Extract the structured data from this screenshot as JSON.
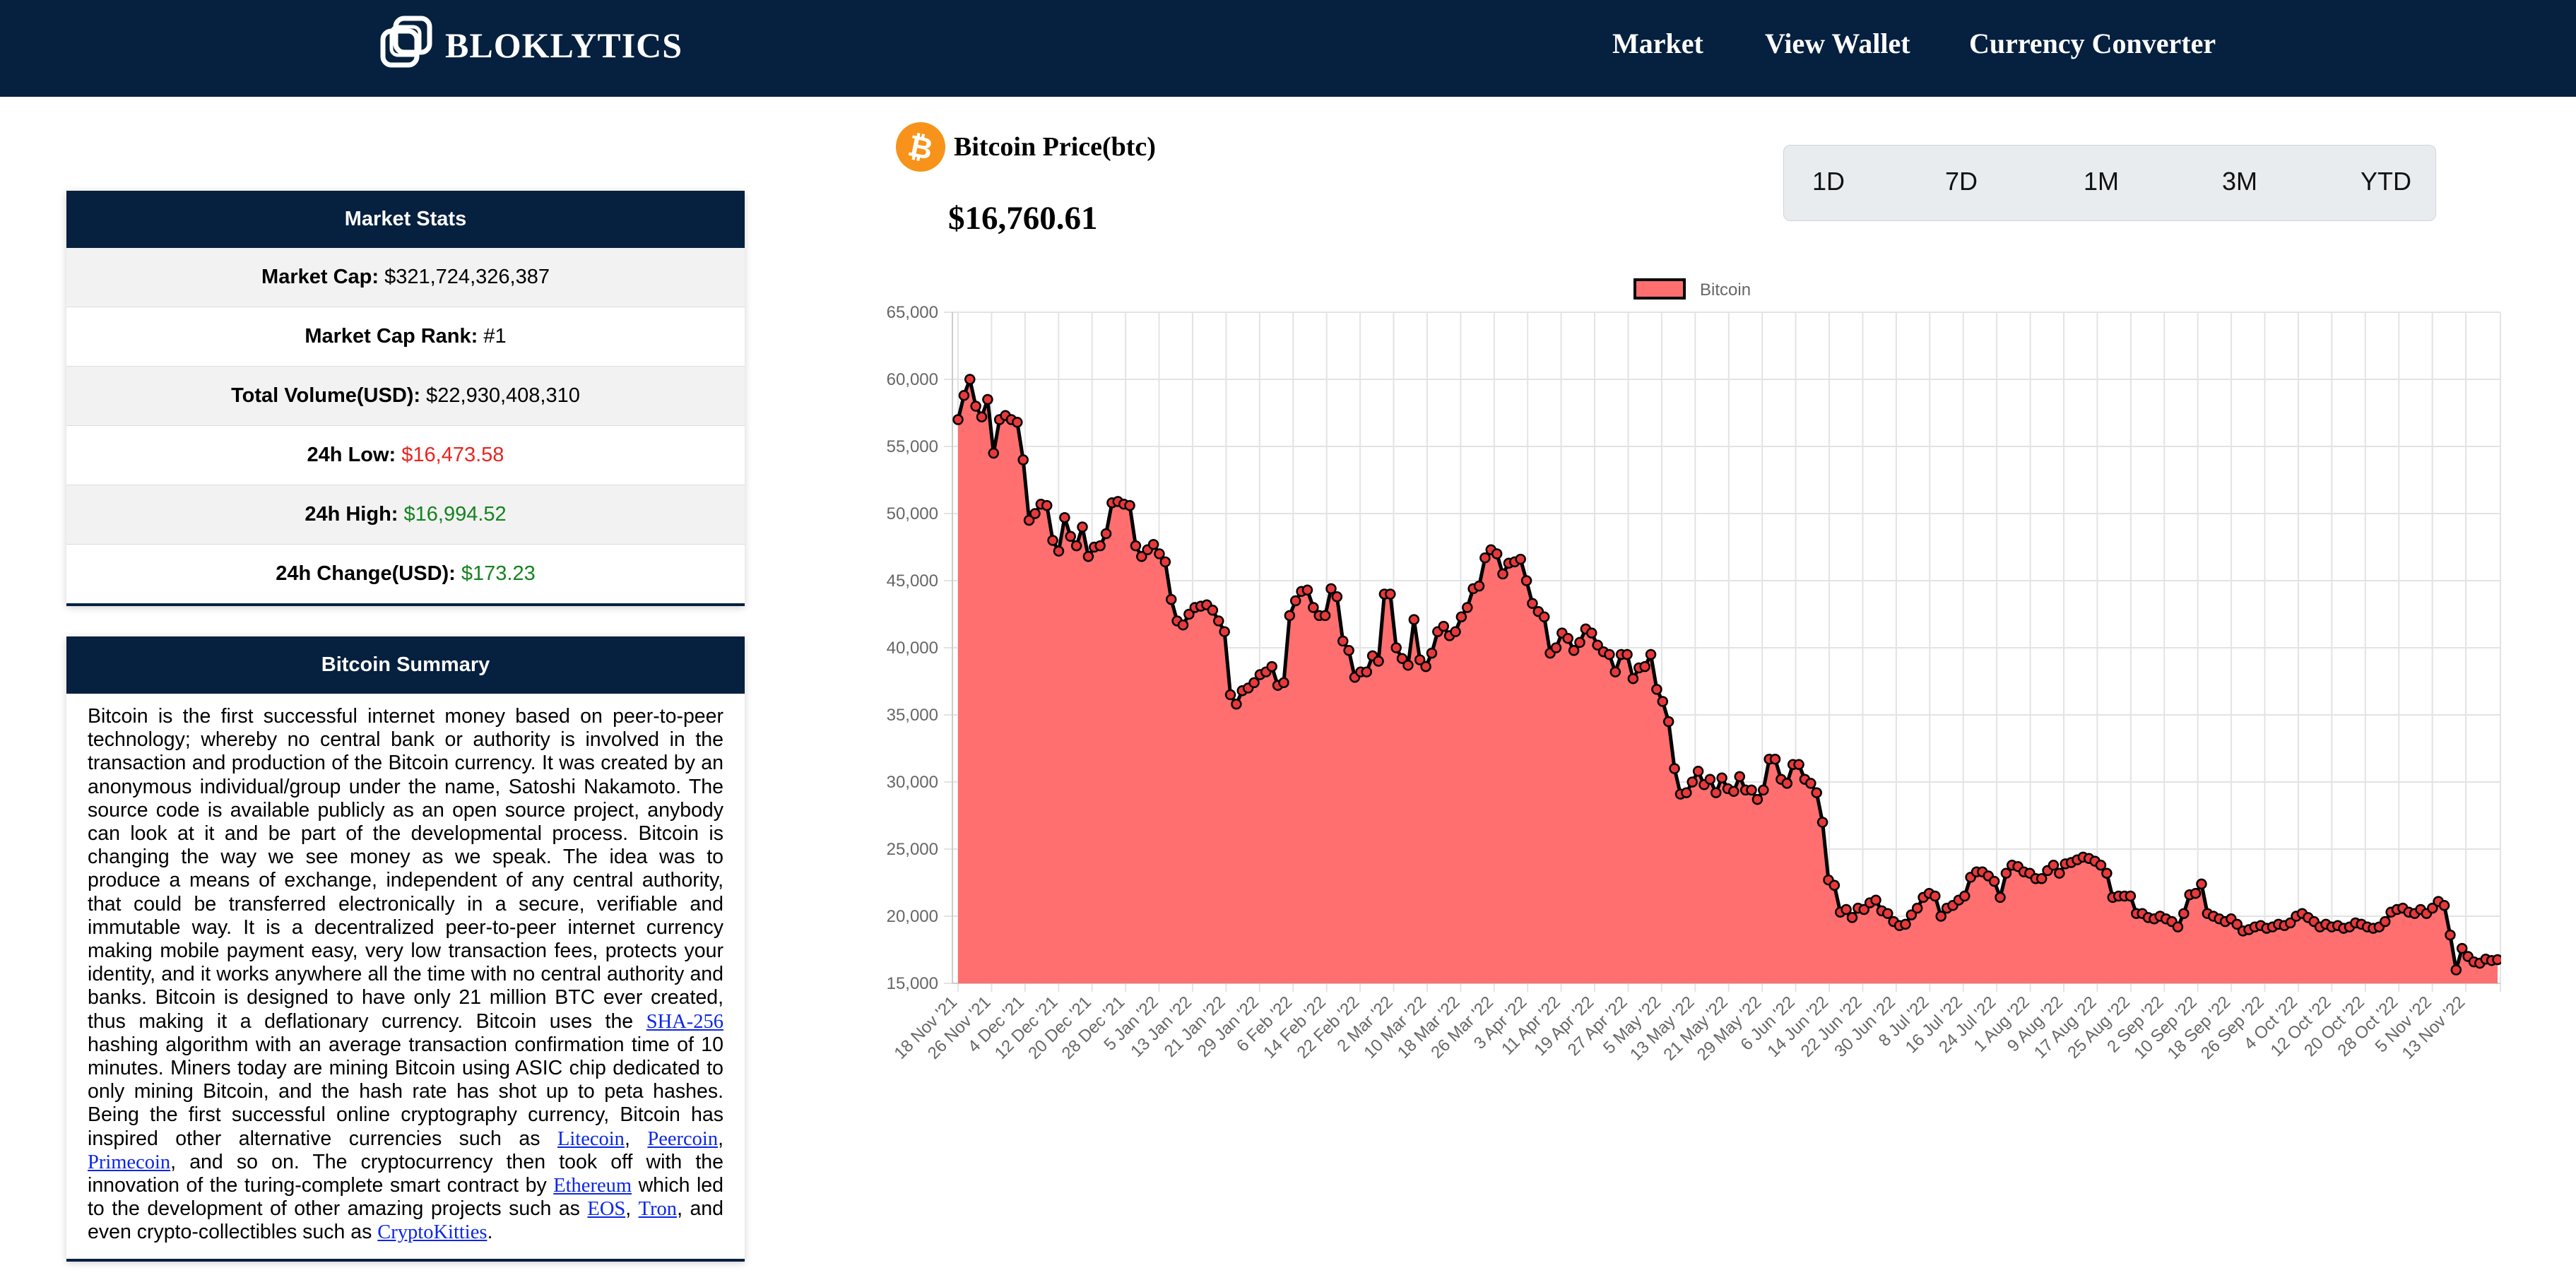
{
  "nav": {
    "brand": "BLOKLYTICS",
    "links": [
      "Market",
      "View Wallet",
      "Currency Converter"
    ]
  },
  "market_stats": {
    "title": "Market Stats",
    "rows": [
      {
        "label": "Market Cap:",
        "value": "$321,724,326,387",
        "color": "#000000"
      },
      {
        "label": "Market Cap Rank:",
        "value": "#1",
        "color": "#000000"
      },
      {
        "label": "Total Volume(USD):",
        "value": "$22,930,408,310",
        "color": "#000000"
      },
      {
        "label": "24h Low:",
        "value": "$16,473.58",
        "color": "#e8251f"
      },
      {
        "label": "24h High:",
        "value": "$16,994.52",
        "color": "#15821f"
      },
      {
        "label": "24h Change(USD):",
        "value": "$173.23",
        "color": "#15821f"
      }
    ]
  },
  "summary": {
    "title": "Bitcoin Summary",
    "t1": "Bitcoin is the first successful internet money based on peer-to-peer technology; whereby no central bank or authority is involved in the transaction and production of the Bitcoin currency. It was created by an anonymous individual/group under the name, Satoshi Nakamoto. The source code is available publicly as an open source project, anybody can look at it and be part of the developmental process. Bitcoin is changing the way we see money as we speak. The idea was to produce a means of exchange, independent of any central authority, that could be transferred electronically in a secure, verifiable and immutable way. It is a decentralized peer-to-peer internet currency making mobile payment easy, very low transaction fees, protects your identity, and it works anywhere all the time with no central authority and banks. Bitcoin is designed to have only 21 million BTC ever created, thus making it a deflationary currency. Bitcoin uses the ",
    "l_sha": "SHA-256",
    "t2": " hashing algorithm with an average transaction confirmation time of 10 minutes. Miners today are mining Bitcoin using ASIC chip dedicated to only mining Bitcoin, and the hash rate has shot up to peta hashes. Being the first successful online cryptography currency, Bitcoin has inspired other alternative currencies such as ",
    "l_litecoin": "Litecoin",
    "t3": ", ",
    "l_peercoin": "Peercoin",
    "t4": ", ",
    "l_primecoin": "Primecoin",
    "t5": ", and so on. The cryptocurrency then took off with the innovation of the turing-complete smart contract by ",
    "l_ethereum": "Ethereum",
    "t6": " which led to the development of other amazing projects such as ",
    "l_eos": "EOS",
    "t7": ", ",
    "l_tron": "Tron",
    "t8": ", and even crypto-collectibles such as ",
    "l_cryptokitties": "CryptoKitties",
    "t9": "."
  },
  "coin": {
    "title": "Bitcoin Price(btc)",
    "price": "$16,760.61",
    "icon": "bitcoin-icon",
    "color": "#f7931a"
  },
  "ranges": [
    "1D",
    "7D",
    "1M",
    "3M",
    "YTD"
  ],
  "chart_data": {
    "type": "area",
    "title": "",
    "xlabel": "",
    "ylabel": "",
    "legend": [
      "Bitcoin"
    ],
    "legend_position": "top",
    "grid": true,
    "ylim": [
      15000,
      65000
    ],
    "yticks": [
      "15,000",
      "20,000",
      "25,000",
      "30,000",
      "35,000",
      "40,000",
      "45,000",
      "50,000",
      "55,000",
      "60,000",
      "65,000"
    ],
    "xtick_labels": [
      "18 Nov '21",
      "26 Nov '21",
      "4 Dec '21",
      "12 Dec '21",
      "20 Dec '21",
      "28 Dec '21",
      "5 Jan '22",
      "13 Jan '22",
      "21 Jan '22",
      "29 Jan '22",
      "6 Feb '22",
      "14 Feb '22",
      "22 Feb '22",
      "2 Mar '22",
      "10 Mar '22",
      "18 Mar '22",
      "26 Mar '22",
      "3 Apr '22",
      "11 Apr '22",
      "19 Apr '22",
      "27 Apr '22",
      "5 May '22",
      "13 May '22",
      "21 May '22",
      "29 May '22",
      "6 Jun '22",
      "14 Jun '22",
      "22 Jun '22",
      "30 Jun '22",
      "8 Jul '22",
      "16 Jul '22",
      "24 Jul '22",
      "1 Aug '22",
      "9 Aug '22",
      "17 Aug '22",
      "25 Aug '22",
      "2 Sep '22",
      "10 Sep '22",
      "18 Sep '22",
      "26 Sep '22",
      "4 Oct '22",
      "12 Oct '22",
      "20 Oct '22",
      "28 Oct '22",
      "5 Nov '22",
      "13 Nov '22"
    ],
    "series": [
      {
        "name": "Bitcoin",
        "color": "#ff6f6f",
        "line_color": "#000000",
        "values": [
          57000,
          58800,
          60000,
          58000,
          57200,
          58500,
          54500,
          57000,
          57300,
          57000,
          56800,
          54000,
          49500,
          50000,
          50700,
          50600,
          48000,
          47200,
          49700,
          48300,
          47600,
          49000,
          46800,
          47500,
          47600,
          48500,
          50800,
          50900,
          50700,
          50600,
          47600,
          46800,
          47300,
          47700,
          47000,
          46400,
          43600,
          42000,
          41700,
          42500,
          43000,
          43100,
          43200,
          42800,
          42000,
          41200,
          36500,
          35800,
          36800,
          37000,
          37400,
          38000,
          38200,
          38600,
          37200,
          37400,
          42400,
          43500,
          44200,
          44300,
          43000,
          42400,
          42400,
          44400,
          43800,
          40500,
          39800,
          37800,
          38200,
          38200,
          39400,
          39000,
          44000,
          44000,
          40000,
          39200,
          38700,
          42100,
          39100,
          38600,
          39600,
          41200,
          41600,
          40900,
          41200,
          42300,
          43000,
          44400,
          44600,
          46700,
          47300,
          47000,
          45500,
          46300,
          46400,
          46600,
          45000,
          43300,
          42700,
          42300,
          39600,
          40000,
          41100,
          40700,
          39800,
          40400,
          41400,
          41100,
          40200,
          39700,
          39500,
          38200,
          39500,
          39500,
          37700,
          38500,
          38600,
          39500,
          36900,
          36000,
          34500,
          31000,
          29100,
          29200,
          30000,
          30800,
          29800,
          30200,
          29200,
          30300,
          29500,
          29300,
          30400,
          29400,
          29400,
          28700,
          29400,
          31700,
          31700,
          30200,
          29900,
          31300,
          31300,
          30200,
          29900,
          29200,
          27000,
          22700,
          22300,
          20300,
          20500,
          19900,
          20600,
          20500,
          21000,
          21200,
          20400,
          20200,
          19600,
          19300,
          19400,
          20100,
          20600,
          21400,
          21700,
          21500,
          20000,
          20600,
          20800,
          21200,
          21500,
          22900,
          23300,
          23300,
          23000,
          22600,
          21400,
          23200,
          23800,
          23700,
          23300,
          23200,
          22800,
          22800,
          23400,
          23800,
          23200,
          23900,
          24000,
          24200,
          24400,
          24300,
          24100,
          23800,
          23200,
          21400,
          21500,
          21500,
          21500,
          20200,
          20200,
          19900,
          19800,
          20000,
          19800,
          19600,
          19200,
          20200,
          21600,
          21700,
          22400,
          20200,
          20000,
          19800,
          19600,
          19800,
          19400,
          18900,
          19000,
          19200,
          19300,
          19100,
          19200,
          19400,
          19300,
          19500,
          20000,
          20200,
          19900,
          19600,
          19200,
          19400,
          19200,
          19300,
          19100,
          19200,
          19500,
          19400,
          19200,
          19100,
          19200,
          19600,
          20300,
          20500,
          20600,
          20300,
          20200,
          20500,
          20200,
          20600,
          21100,
          20800,
          18600,
          16000,
          17600,
          17000,
          16600,
          16500,
          16800,
          16700,
          16760
        ]
      }
    ]
  }
}
